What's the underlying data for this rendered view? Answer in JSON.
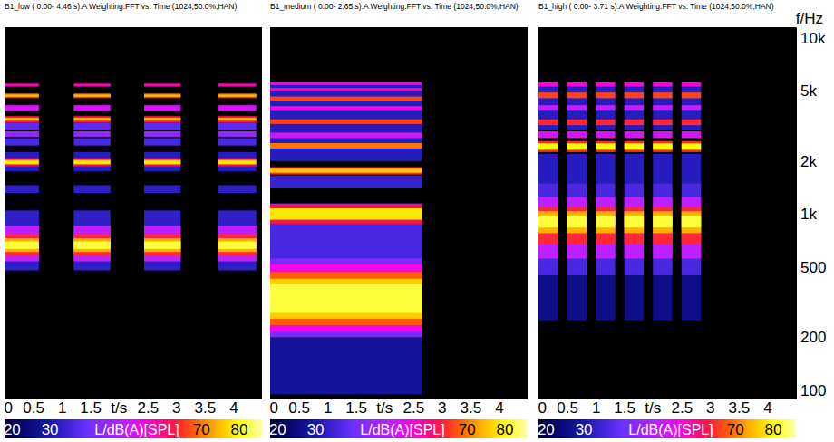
{
  "chart_data": [
    {
      "type": "spectrogram",
      "title": "B1_low ( 0.00- 4.46 s).A Weighting.FFT vs. Time (1024,50.0%,HAN)",
      "xlabel": "t/s",
      "xlim": [
        0,
        4.5
      ],
      "xticks": [
        0,
        0.5,
        1,
        1.5,
        2.5,
        3,
        3.5,
        4
      ],
      "ylim": [
        90,
        11500
      ],
      "log": "y",
      "tick_labels": "x",
      "segments": [
        [
          0,
          0.6
        ],
        [
          1.21,
          1.85
        ],
        [
          2.44,
          3.08
        ],
        [
          3.73,
          4.4
        ]
      ],
      "bands": [
        {
          "freq": [
            480,
            1050
          ],
          "level": 33
        },
        {
          "freq": [
            540,
            860
          ],
          "level": 50
        },
        {
          "freq": [
            580,
            770
          ],
          "level": 64
        },
        {
          "freq": [
            610,
            730
          ],
          "level": 74
        },
        {
          "freq": [
            635,
            700
          ],
          "level": 82
        },
        {
          "freq": [
            1320,
            1460
          ],
          "level": 33
        },
        {
          "freq": [
            1750,
            2250
          ],
          "level": 32
        },
        {
          "freq": [
            1870,
            2080
          ],
          "level": 62
        },
        {
          "freq": [
            1920,
            2030
          ],
          "level": 78
        },
        {
          "freq": [
            2450,
            2700
          ],
          "level": 36
        },
        {
          "freq": [
            2750,
            2950
          ],
          "level": 45
        },
        {
          "freq": [
            3000,
            3300
          ],
          "level": 38
        },
        {
          "freq": [
            3300,
            3600
          ],
          "level": 62
        },
        {
          "freq": [
            3390,
            3520
          ],
          "level": 74
        },
        {
          "freq": [
            3850,
            4150
          ],
          "level": 52
        },
        {
          "freq": [
            4550,
            4850
          ],
          "level": 62
        },
        {
          "freq": [
            4620,
            4780
          ],
          "level": 74
        },
        {
          "freq": [
            5300,
            5500
          ],
          "level": 58
        }
      ],
      "colorbar": {
        "range": [
          18,
          86
        ],
        "ticks": [
          20,
          30,
          70,
          80
        ],
        "label": "L/dB(A)[SPL]"
      }
    },
    {
      "type": "spectrogram",
      "title": "B1_medium ( 0.00- 2.65 s).A Weighting.FFT vs. Time (1024,50.0%,HAN)",
      "xlabel": "t/s",
      "xlim": [
        0,
        4.5
      ],
      "xticks": [
        0,
        0.5,
        1,
        1.5,
        2.5,
        3,
        3.5,
        4
      ],
      "ylim": [
        90,
        11500
      ],
      "log": "y",
      "tick_labels": "x",
      "segments": [
        [
          0,
          2.65
        ]
      ],
      "bands": [
        {
          "freq": [
            95,
            200
          ],
          "level": 28
        },
        {
          "freq": [
            200,
            1150
          ],
          "level": 42
        },
        {
          "freq": [
            215,
            520
          ],
          "level": 55
        },
        {
          "freq": [
            235,
            470
          ],
          "level": 68
        },
        {
          "freq": [
            255,
            430
          ],
          "level": 76
        },
        {
          "freq": [
            275,
            400
          ],
          "level": 82
        },
        {
          "freq": [
            560,
            880
          ],
          "level": 36
        },
        {
          "freq": [
            880,
            1130
          ],
          "level": 62
        },
        {
          "freq": [
            930,
            1080
          ],
          "level": 78
        },
        {
          "freq": [
            1400,
            1650
          ],
          "level": 34
        },
        {
          "freq": [
            1680,
            1850
          ],
          "level": 64
        },
        {
          "freq": [
            1720,
            1810
          ],
          "level": 76
        },
        {
          "freq": [
            2000,
            5600
          ],
          "level": 32
        },
        {
          "freq": [
            2360,
            2530
          ],
          "level": 70
        },
        {
          "freq": [
            2700,
            2900
          ],
          "level": 52
        },
        {
          "freq": [
            3250,
            3450
          ],
          "level": 66
        },
        {
          "freq": [
            3900,
            4100
          ],
          "level": 56
        },
        {
          "freq": [
            4400,
            4650
          ],
          "level": 66
        },
        {
          "freq": [
            5000,
            5200
          ],
          "level": 58
        },
        {
          "freq": [
            5400,
            5600
          ],
          "level": 56
        }
      ],
      "colorbar": {
        "range": [
          18,
          86
        ],
        "ticks": [
          20,
          30,
          70,
          80
        ],
        "label": "L/dB(A)[SPL]"
      }
    },
    {
      "type": "spectrogram",
      "title": "B1_high ( 0.00- 3.71 s).A Weighting.FFT vs. Time (1024,50.0%,HAN)",
      "xlabel": "t/s",
      "ylabel": "f/Hz",
      "xlim": [
        0,
        4.5
      ],
      "xticks": [
        0,
        0.5,
        1,
        1.5,
        2.5,
        3,
        3.5,
        4
      ],
      "ylim": [
        90,
        11500
      ],
      "log": "y",
      "yticks": [
        100,
        200,
        500,
        {
          "value": 1000,
          "label": "1k"
        },
        {
          "value": 2000,
          "label": "2k"
        },
        {
          "value": 5000,
          "label": "5k"
        },
        {
          "value": 10000,
          "label": "10k"
        }
      ],
      "segments": [
        [
          0,
          0.34
        ],
        [
          0.5,
          0.84
        ],
        [
          1.0,
          1.34
        ],
        [
          1.5,
          1.84
        ],
        [
          2.0,
          2.34
        ],
        [
          2.5,
          2.84
        ]
      ],
      "bands": [
        {
          "freq": [
            250,
            450
          ],
          "level": 26
        },
        {
          "freq": [
            450,
            1500
          ],
          "level": 36
        },
        {
          "freq": [
            560,
            1250
          ],
          "level": 50
        },
        {
          "freq": [
            680,
            1100
          ],
          "level": 64
        },
        {
          "freq": [
            780,
            1040
          ],
          "level": 74
        },
        {
          "freq": [
            840,
            980
          ],
          "level": 82
        },
        {
          "freq": [
            1500,
            2200
          ],
          "level": 32
        },
        {
          "freq": [
            2250,
            2600
          ],
          "level": 64
        },
        {
          "freq": [
            2320,
            2520
          ],
          "level": 80
        },
        {
          "freq": [
            2700,
            2950
          ],
          "level": 52
        },
        {
          "freq": [
            3000,
            5500
          ],
          "level": 32
        },
        {
          "freq": [
            3200,
            3450
          ],
          "level": 64
        },
        {
          "freq": [
            3900,
            4150
          ],
          "level": 50
        },
        {
          "freq": [
            4550,
            4900
          ],
          "level": 66
        },
        {
          "freq": [
            5300,
            5600
          ],
          "level": 56
        }
      ],
      "colorbar": {
        "range": [
          18,
          86
        ],
        "ticks": [
          20,
          30,
          70,
          80
        ],
        "label": "L/dB(A)[SPL]"
      }
    }
  ]
}
